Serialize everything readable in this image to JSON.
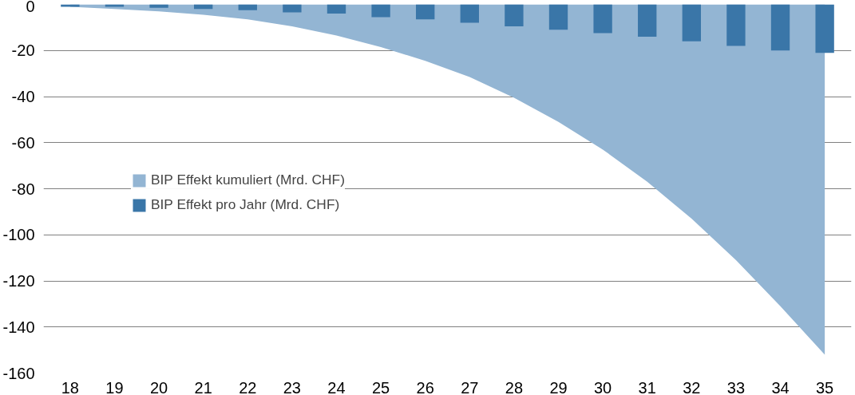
{
  "chart_data": {
    "type": "bar",
    "categories": [
      "18",
      "19",
      "20",
      "21",
      "22",
      "23",
      "24",
      "25",
      "26",
      "27",
      "28",
      "29",
      "30",
      "31",
      "32",
      "33",
      "34",
      "35"
    ],
    "series": [
      {
        "name": "BIP Effekt kumuliert (Mrd. CHF)",
        "type": "area",
        "color": "#93b5d3",
        "values": [
          -1,
          -2,
          -3,
          -4.5,
          -6.5,
          -9.5,
          -13.5,
          -18.5,
          -24.5,
          -31.5,
          -40.5,
          -51,
          -63,
          -77,
          -93,
          -111,
          -131,
          -152
        ]
      },
      {
        "name": "BIP Effekt pro Jahr (Mrd. CHF)",
        "color": "#3a76a8",
        "values": [
          -1,
          -1,
          -1.5,
          -2,
          -2.5,
          -3.5,
          -4,
          -5.5,
          -6.5,
          -8,
          -9.5,
          -11,
          -12.5,
          -14,
          -16,
          -18,
          -20,
          -21
        ]
      }
    ],
    "ylim": [
      -160,
      0
    ],
    "yticks": [
      -160,
      -140,
      -120,
      -100,
      -80,
      -60,
      -40,
      -20,
      0
    ],
    "grid": "y",
    "legend": "left"
  }
}
